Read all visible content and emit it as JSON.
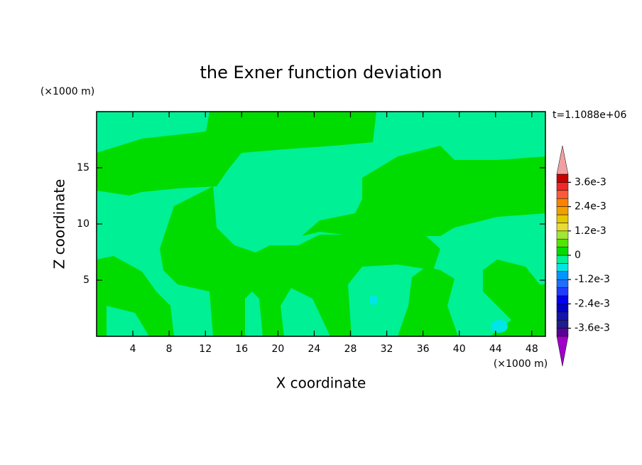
{
  "chart_data": {
    "type": "contour",
    "title": "the Exner function deviation",
    "xlabel": "X coordinate",
    "ylabel": "Z coordinate",
    "xunit": "(×1000 m)",
    "yunit": "(×1000 m)",
    "time_label": "t=1.1088e+06",
    "xlim": [
      0,
      49.5
    ],
    "xticks": [
      4,
      8,
      12,
      16,
      20,
      24,
      28,
      32,
      36,
      40,
      44,
      48
    ],
    "ylim": [
      0,
      20
    ],
    "yticks": [
      5,
      10,
      15
    ],
    "colorbar": {
      "levels": [
        -0.004,
        -0.0036,
        -0.0032,
        -0.0028,
        -0.0024,
        -0.002,
        -0.0016,
        -0.0012,
        -0.0008,
        -0.0004,
        0,
        0.0004,
        0.0008,
        0.0012,
        0.0016,
        0.002,
        0.0024,
        0.0028,
        0.0032,
        0.0036,
        0.004
      ],
      "colors": [
        "#a000c8",
        "#5a0096",
        "#1e1e8c",
        "#1414aa",
        "#0000c8",
        "#0000f0",
        "#1e3cff",
        "#1e6eff",
        "#0096ff",
        "#00e6e6",
        "#00f096",
        "#00dc00",
        "#50e600",
        "#a0e632",
        "#e6dc32",
        "#e6c800",
        "#f0a000",
        "#fa8200",
        "#fa5a3c",
        "#f02828",
        "#c80000",
        "#f0a0a0"
      ],
      "ticks": [
        {
          "value": 0.0036,
          "label": "3.6e-3"
        },
        {
          "value": 0.0024,
          "label": "2.4e-3"
        },
        {
          "value": 0.0012,
          "label": "1.2e-3"
        },
        0,
        {
          "value": -0.0012,
          "label": "-1.2e-3"
        },
        {
          "value": -0.0024,
          "label": "-2.4e-3"
        },
        {
          "value": -0.0036,
          "label": "-3.6e-3"
        }
      ]
    }
  }
}
